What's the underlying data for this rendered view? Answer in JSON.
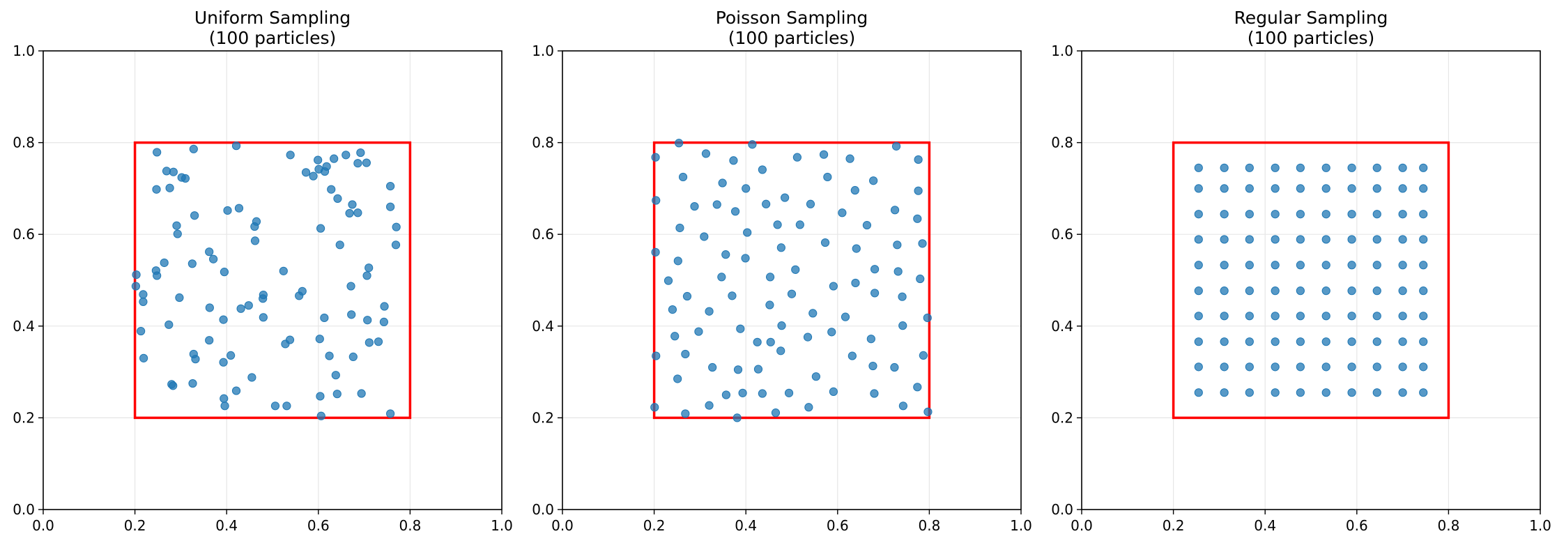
{
  "chart_data": [
    {
      "type": "scatter",
      "title": "Uniform Sampling\n(100 particles)",
      "xlim": [
        0.0,
        1.0
      ],
      "ylim": [
        0.0,
        1.0
      ],
      "xticks": [
        "0.0",
        "0.2",
        "0.4",
        "0.6",
        "0.8",
        "1.0"
      ],
      "yticks": [
        "0.0",
        "0.2",
        "0.4",
        "0.6",
        "0.8",
        "1.0"
      ],
      "grid": true,
      "region": {
        "x0": 0.2,
        "y0": 0.2,
        "x1": 0.8,
        "y1": 0.8,
        "color": "#ff0000"
      },
      "point_color": "#1f77b4",
      "points": [
        [
          0.248,
          0.779
        ],
        [
          0.328,
          0.786
        ],
        [
          0.421,
          0.793
        ],
        [
          0.269,
          0.738
        ],
        [
          0.284,
          0.736
        ],
        [
          0.302,
          0.724
        ],
        [
          0.31,
          0.722
        ],
        [
          0.247,
          0.698
        ],
        [
          0.276,
          0.701
        ],
        [
          0.33,
          0.641
        ],
        [
          0.402,
          0.652
        ],
        [
          0.427,
          0.657
        ],
        [
          0.291,
          0.619
        ],
        [
          0.293,
          0.601
        ],
        [
          0.465,
          0.628
        ],
        [
          0.461,
          0.617
        ],
        [
          0.462,
          0.586
        ],
        [
          0.539,
          0.773
        ],
        [
          0.599,
          0.762
        ],
        [
          0.618,
          0.748
        ],
        [
          0.601,
          0.742
        ],
        [
          0.614,
          0.737
        ],
        [
          0.573,
          0.735
        ],
        [
          0.589,
          0.727
        ],
        [
          0.634,
          0.765
        ],
        [
          0.66,
          0.773
        ],
        [
          0.692,
          0.778
        ],
        [
          0.705,
          0.756
        ],
        [
          0.686,
          0.755
        ],
        [
          0.628,
          0.698
        ],
        [
          0.642,
          0.678
        ],
        [
          0.674,
          0.665
        ],
        [
          0.668,
          0.646
        ],
        [
          0.686,
          0.647
        ],
        [
          0.757,
          0.705
        ],
        [
          0.757,
          0.66
        ],
        [
          0.77,
          0.616
        ],
        [
          0.769,
          0.577
        ],
        [
          0.605,
          0.613
        ],
        [
          0.647,
          0.577
        ],
        [
          0.362,
          0.562
        ],
        [
          0.371,
          0.546
        ],
        [
          0.325,
          0.536
        ],
        [
          0.395,
          0.518
        ],
        [
          0.203,
          0.512
        ],
        [
          0.246,
          0.521
        ],
        [
          0.248,
          0.51
        ],
        [
          0.264,
          0.538
        ],
        [
          0.202,
          0.487
        ],
        [
          0.218,
          0.469
        ],
        [
          0.218,
          0.453
        ],
        [
          0.297,
          0.462
        ],
        [
          0.431,
          0.438
        ],
        [
          0.448,
          0.445
        ],
        [
          0.48,
          0.468
        ],
        [
          0.479,
          0.46
        ],
        [
          0.524,
          0.52
        ],
        [
          0.565,
          0.476
        ],
        [
          0.558,
          0.466
        ],
        [
          0.71,
          0.527
        ],
        [
          0.706,
          0.51
        ],
        [
          0.671,
          0.487
        ],
        [
          0.363,
          0.44
        ],
        [
          0.393,
          0.414
        ],
        [
          0.48,
          0.419
        ],
        [
          0.213,
          0.389
        ],
        [
          0.274,
          0.403
        ],
        [
          0.613,
          0.418
        ],
        [
          0.672,
          0.425
        ],
        [
          0.707,
          0.413
        ],
        [
          0.744,
          0.443
        ],
        [
          0.743,
          0.409
        ],
        [
          0.219,
          0.33
        ],
        [
          0.328,
          0.339
        ],
        [
          0.332,
          0.328
        ],
        [
          0.362,
          0.369
        ],
        [
          0.393,
          0.321
        ],
        [
          0.409,
          0.336
        ],
        [
          0.528,
          0.361
        ],
        [
          0.538,
          0.37
        ],
        [
          0.603,
          0.372
        ],
        [
          0.624,
          0.335
        ],
        [
          0.676,
          0.333
        ],
        [
          0.711,
          0.364
        ],
        [
          0.731,
          0.366
        ],
        [
          0.28,
          0.273
        ],
        [
          0.283,
          0.27
        ],
        [
          0.326,
          0.275
        ],
        [
          0.455,
          0.288
        ],
        [
          0.638,
          0.293
        ],
        [
          0.604,
          0.247
        ],
        [
          0.641,
          0.252
        ],
        [
          0.694,
          0.253
        ],
        [
          0.394,
          0.242
        ],
        [
          0.396,
          0.226
        ],
        [
          0.506,
          0.226
        ],
        [
          0.531,
          0.226
        ],
        [
          0.606,
          0.204
        ],
        [
          0.757,
          0.209
        ],
        [
          0.421,
          0.259
        ]
      ]
    },
    {
      "type": "scatter",
      "title": "Poisson Sampling\n(100 particles)",
      "xlim": [
        0.0,
        1.0
      ],
      "ylim": [
        0.0,
        1.0
      ],
      "xticks": [
        "0.0",
        "0.2",
        "0.4",
        "0.6",
        "0.8",
        "1.0"
      ],
      "yticks": [
        "0.0",
        "0.2",
        "0.4",
        "0.6",
        "0.8",
        "1.0"
      ],
      "grid": true,
      "region": {
        "x0": 0.2,
        "y0": 0.2,
        "x1": 0.8,
        "y1": 0.8,
        "color": "#ff0000"
      },
      "point_color": "#1f77b4",
      "points": [
        [
          0.203,
          0.768
        ],
        [
          0.254,
          0.799
        ],
        [
          0.313,
          0.776
        ],
        [
          0.373,
          0.761
        ],
        [
          0.414,
          0.796
        ],
        [
          0.512,
          0.768
        ],
        [
          0.57,
          0.774
        ],
        [
          0.627,
          0.765
        ],
        [
          0.728,
          0.792
        ],
        [
          0.776,
          0.763
        ],
        [
          0.263,
          0.725
        ],
        [
          0.349,
          0.712
        ],
        [
          0.4,
          0.7
        ],
        [
          0.436,
          0.741
        ],
        [
          0.578,
          0.725
        ],
        [
          0.678,
          0.717
        ],
        [
          0.776,
          0.695
        ],
        [
          0.204,
          0.674
        ],
        [
          0.288,
          0.661
        ],
        [
          0.337,
          0.665
        ],
        [
          0.377,
          0.65
        ],
        [
          0.444,
          0.666
        ],
        [
          0.485,
          0.68
        ],
        [
          0.541,
          0.666
        ],
        [
          0.61,
          0.647
        ],
        [
          0.638,
          0.696
        ],
        [
          0.725,
          0.653
        ],
        [
          0.774,
          0.634
        ],
        [
          0.256,
          0.614
        ],
        [
          0.309,
          0.595
        ],
        [
          0.403,
          0.604
        ],
        [
          0.469,
          0.621
        ],
        [
          0.518,
          0.621
        ],
        [
          0.664,
          0.62
        ],
        [
          0.573,
          0.582
        ],
        [
          0.641,
          0.569
        ],
        [
          0.73,
          0.577
        ],
        [
          0.785,
          0.58
        ],
        [
          0.203,
          0.561
        ],
        [
          0.252,
          0.542
        ],
        [
          0.356,
          0.556
        ],
        [
          0.399,
          0.548
        ],
        [
          0.477,
          0.571
        ],
        [
          0.231,
          0.499
        ],
        [
          0.347,
          0.507
        ],
        [
          0.453,
          0.507
        ],
        [
          0.508,
          0.523
        ],
        [
          0.591,
          0.487
        ],
        [
          0.639,
          0.494
        ],
        [
          0.681,
          0.524
        ],
        [
          0.732,
          0.519
        ],
        [
          0.78,
          0.503
        ],
        [
          0.272,
          0.465
        ],
        [
          0.37,
          0.466
        ],
        [
          0.5,
          0.47
        ],
        [
          0.681,
          0.472
        ],
        [
          0.741,
          0.464
        ],
        [
          0.24,
          0.436
        ],
        [
          0.32,
          0.432
        ],
        [
          0.452,
          0.446
        ],
        [
          0.546,
          0.428
        ],
        [
          0.617,
          0.42
        ],
        [
          0.796,
          0.418
        ],
        [
          0.245,
          0.378
        ],
        [
          0.297,
          0.388
        ],
        [
          0.388,
          0.394
        ],
        [
          0.478,
          0.401
        ],
        [
          0.535,
          0.376
        ],
        [
          0.587,
          0.387
        ],
        [
          0.742,
          0.401
        ],
        [
          0.204,
          0.335
        ],
        [
          0.425,
          0.365
        ],
        [
          0.476,
          0.346
        ],
        [
          0.632,
          0.335
        ],
        [
          0.673,
          0.372
        ],
        [
          0.787,
          0.336
        ],
        [
          0.251,
          0.285
        ],
        [
          0.327,
          0.31
        ],
        [
          0.383,
          0.305
        ],
        [
          0.427,
          0.306
        ],
        [
          0.553,
          0.29
        ],
        [
          0.677,
          0.313
        ],
        [
          0.724,
          0.31
        ],
        [
          0.268,
          0.339
        ],
        [
          0.357,
          0.25
        ],
        [
          0.436,
          0.253
        ],
        [
          0.494,
          0.254
        ],
        [
          0.591,
          0.257
        ],
        [
          0.68,
          0.253
        ],
        [
          0.774,
          0.267
        ],
        [
          0.201,
          0.223
        ],
        [
          0.268,
          0.209
        ],
        [
          0.32,
          0.227
        ],
        [
          0.381,
          0.2
        ],
        [
          0.465,
          0.211
        ],
        [
          0.537,
          0.223
        ],
        [
          0.743,
          0.226
        ],
        [
          0.797,
          0.213
        ],
        [
          0.393,
          0.254
        ],
        [
          0.454,
          0.365
        ]
      ]
    },
    {
      "type": "scatter",
      "title": "Regular Sampling\n(100 particles)",
      "xlim": [
        0.0,
        1.0
      ],
      "ylim": [
        0.0,
        1.0
      ],
      "xticks": [
        "0.0",
        "0.2",
        "0.4",
        "0.6",
        "0.8",
        "1.0"
      ],
      "yticks": [
        "0.0",
        "0.2",
        "0.4",
        "0.6",
        "0.8",
        "1.0"
      ],
      "grid": true,
      "region": {
        "x0": 0.2,
        "y0": 0.2,
        "x1": 0.8,
        "y1": 0.8,
        "color": "#ff0000"
      },
      "point_color": "#1f77b4",
      "grid_points": {
        "x": [
          0.255,
          0.311,
          0.366,
          0.422,
          0.477,
          0.533,
          0.589,
          0.644,
          0.7,
          0.745
        ],
        "y": [
          0.255,
          0.311,
          0.366,
          0.422,
          0.477,
          0.533,
          0.589,
          0.644,
          0.7,
          0.745
        ]
      }
    }
  ]
}
